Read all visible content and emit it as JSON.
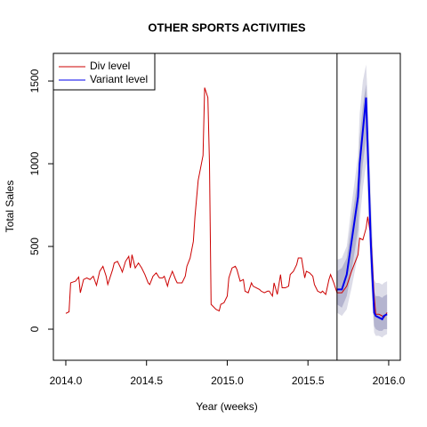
{
  "chart_data": {
    "type": "line",
    "title": "OTHER SPORTS ACTIVITIES",
    "x_label": "Year (weeks)",
    "y_label": "Total Sales",
    "xlim": [
      2013.923,
      2016.072
    ],
    "ylim": [
      -188,
      1667
    ],
    "xticks": [
      {
        "value": 2014,
        "label": "2014.0"
      },
      {
        "value": 2014.5,
        "label": "2014.5"
      },
      {
        "value": 2015,
        "label": "2015.0"
      },
      {
        "value": 2015.5,
        "label": "2015.5"
      },
      {
        "value": 2016,
        "label": "2016.0"
      }
    ],
    "yticks": [
      0,
      500,
      1000,
      1500
    ],
    "grid": false,
    "legend": "top-left",
    "forecast_start": 2015.68,
    "series": [
      {
        "name": "Div level",
        "color": "#cc0000",
        "x": [
          2014.0,
          2014.02,
          2014.03,
          2014.06,
          2014.08,
          2014.09,
          2014.11,
          2014.13,
          2014.15,
          2014.17,
          2014.19,
          2014.21,
          2014.23,
          2014.25,
          2014.26,
          2014.29,
          2014.3,
          2014.32,
          2014.34,
          2014.35,
          2014.37,
          2014.39,
          2014.4,
          2014.41,
          2014.43,
          2014.45,
          2014.47,
          2014.49,
          2014.51,
          2014.52,
          2014.54,
          2014.56,
          2014.58,
          2014.6,
          2014.61,
          2014.63,
          2014.64,
          2014.66,
          2014.68,
          2014.69,
          2014.72,
          2014.74,
          2014.75,
          2014.77,
          2014.79,
          2014.8,
          2014.82,
          2014.84,
          2014.85,
          2014.86,
          2014.88,
          2014.89,
          2014.9,
          2014.91,
          2014.93,
          2014.95,
          2014.96,
          2014.98,
          2015.0,
          2015.01,
          2015.03,
          2015.05,
          2015.06,
          2015.08,
          2015.1,
          2015.11,
          2015.13,
          2015.15,
          2015.16,
          2015.18,
          2015.2,
          2015.21,
          2015.23,
          2015.25,
          2015.26,
          2015.28,
          2015.29,
          2015.31,
          2015.33,
          2015.34,
          2015.36,
          2015.38,
          2015.39,
          2015.41,
          2015.43,
          2015.44,
          2015.46,
          2015.48,
          2015.49,
          2015.51,
          2015.53,
          2015.54,
          2015.56,
          2015.58,
          2015.59,
          2015.61,
          2015.63,
          2015.64,
          2015.66,
          2015.68,
          2015.71,
          2015.74,
          2015.77,
          2015.81,
          2015.82,
          2015.84,
          2015.86,
          2015.87,
          2015.89,
          2015.91,
          2015.92,
          2015.94,
          2015.96,
          2015.97,
          2015.99
        ],
        "values": [
          95,
          105,
          280,
          290,
          315,
          220,
          300,
          310,
          300,
          320,
          265,
          350,
          380,
          320,
          270,
          360,
          400,
          410,
          370,
          345,
          410,
          440,
          370,
          450,
          370,
          400,
          370,
          330,
          280,
          270,
          320,
          340,
          310,
          310,
          320,
          260,
          300,
          350,
          300,
          280,
          280,
          320,
          380,
          430,
          530,
          680,
          900,
          1000,
          1050,
          1460,
          1400,
          1000,
          150,
          140,
          120,
          110,
          150,
          160,
          200,
          310,
          370,
          380,
          360,
          290,
          300,
          230,
          220,
          280,
          260,
          250,
          240,
          230,
          220,
          230,
          230,
          200,
          280,
          210,
          330,
          250,
          250,
          260,
          330,
          350,
          390,
          430,
          430,
          310,
          350,
          340,
          320,
          270,
          230,
          220,
          230,
          210,
          300,
          330,
          280,
          220,
          220,
          260,
          350,
          450,
          550,
          540,
          610,
          680,
          560,
          200,
          90,
          90,
          80,
          70,
          100
        ]
      },
      {
        "name": "Variant level",
        "color": "#0000ee",
        "x": [
          2015.68,
          2015.71,
          2015.74,
          2015.77,
          2015.81,
          2015.82,
          2015.84,
          2015.86,
          2015.87,
          2015.89,
          2015.91,
          2015.92,
          2015.94,
          2015.96,
          2015.97,
          2015.99
        ],
        "values": [
          240,
          240,
          330,
          530,
          800,
          1000,
          1200,
          1400,
          1100,
          500,
          100,
          80,
          70,
          60,
          80,
          90
        ]
      }
    ],
    "intervals": [
      {
        "color": "#dcdce8",
        "x": [
          2015.68,
          2015.71,
          2015.74,
          2015.77,
          2015.81,
          2015.82,
          2015.84,
          2015.86,
          2015.87,
          2015.89,
          2015.91,
          2015.92,
          2015.94,
          2015.96,
          2015.97,
          2015.99
        ],
        "upper": [
          420,
          430,
          500,
          750,
          1050,
          1300,
          1500,
          1600,
          1400,
          800,
          300,
          280,
          280,
          270,
          280,
          290
        ],
        "lower": [
          100,
          80,
          120,
          250,
          450,
          650,
          850,
          1000,
          800,
          300,
          -20,
          -40,
          -40,
          -50,
          -40,
          -30
        ]
      },
      {
        "color": "#b4b4cf",
        "x": [
          2015.68,
          2015.71,
          2015.74,
          2015.77,
          2015.81,
          2015.82,
          2015.84,
          2015.86,
          2015.87,
          2015.89,
          2015.91,
          2015.92,
          2015.94,
          2015.96,
          2015.97,
          2015.99
        ],
        "upper": [
          350,
          370,
          430,
          650,
          920,
          1150,
          1350,
          1480,
          1250,
          700,
          230,
          200,
          200,
          190,
          200,
          210
        ],
        "lower": [
          150,
          130,
          200,
          350,
          600,
          800,
          1000,
          1150,
          950,
          350,
          20,
          0,
          -10,
          -10,
          0,
          0
        ]
      }
    ]
  }
}
